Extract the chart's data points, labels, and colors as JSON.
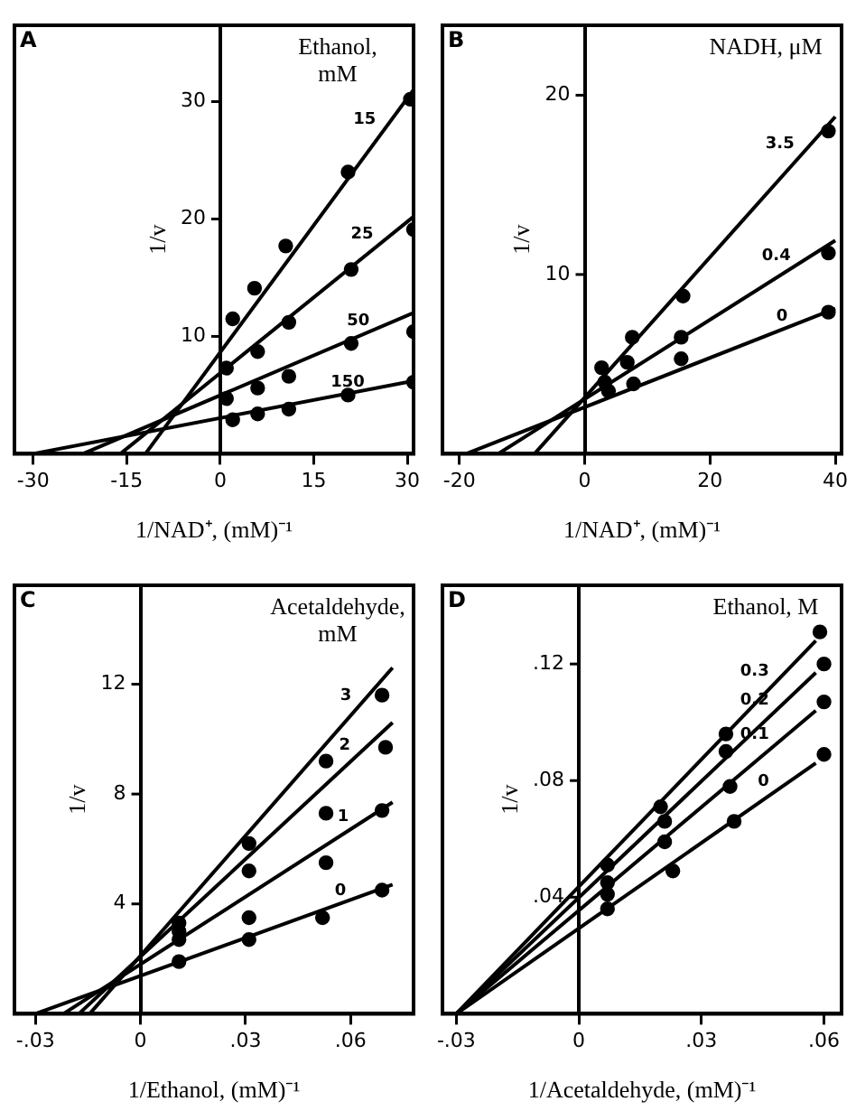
{
  "chart_data": [
    {
      "type": "scatter",
      "title": "A",
      "xlabel": "1/NAD⁺, (mM)⁻¹",
      "ylabel": "1/v",
      "legend_title": "Ethanol, mM",
      "marker": "circle",
      "xlim": [
        -33,
        31
      ],
      "ylim": [
        0,
        36.5
      ],
      "xticks": [
        -30,
        -15,
        0,
        15,
        30
      ],
      "yticks": [
        10,
        20,
        30
      ],
      "series": [
        {
          "type": "scatter",
          "color": "#000000",
          "x": [
            2,
            5.5,
            10.5,
            20.5,
            30.5
          ],
          "values": [
            11.5,
            14.1,
            17.7,
            24,
            30.2
          ]
        },
        {
          "type": "line",
          "name": "15",
          "marker": "none",
          "color": "#000000",
          "x": [
            -12,
            31
          ],
          "values": [
            0,
            31
          ]
        },
        {
          "type": "scatter",
          "color": "#000000",
          "x": [
            1,
            6,
            11,
            21,
            31
          ],
          "values": [
            7.3,
            8.7,
            11.2,
            15.7,
            19.1
          ]
        },
        {
          "type": "line",
          "name": "25",
          "marker": "none",
          "color": "#000000",
          "x": [
            -16,
            31
          ],
          "values": [
            0,
            20.2
          ]
        },
        {
          "type": "scatter",
          "color": "#000000",
          "x": [
            1,
            6,
            11,
            21,
            31
          ],
          "values": [
            4.7,
            5.6,
            6.6,
            9.4,
            10.4
          ]
        },
        {
          "type": "line",
          "name": "50",
          "marker": "none",
          "color": "#000000",
          "x": [
            -22,
            31
          ],
          "values": [
            0,
            12
          ]
        },
        {
          "type": "scatter",
          "color": "#000000",
          "x": [
            2,
            6,
            11,
            20.5,
            31
          ],
          "values": [
            2.9,
            3.4,
            3.8,
            5,
            6.1
          ]
        },
        {
          "type": "line",
          "name": "150",
          "marker": "none",
          "color": "#000000",
          "x": [
            -30,
            31
          ],
          "values": [
            0,
            6.2
          ]
        }
      ]
    },
    {
      "type": "scatter",
      "title": "B",
      "xlabel": "1/NAD⁺, (mM)⁻¹",
      "ylabel": "1/v",
      "legend_title": "NADH, μM",
      "marker": "circle",
      "xlim": [
        -22.7,
        41
      ],
      "ylim": [
        0,
        23.9
      ],
      "xticks": [
        -20,
        0,
        20,
        40
      ],
      "yticks": [
        10,
        20
      ],
      "series": [
        {
          "type": "scatter",
          "color": "#000000",
          "x": [
            2.7,
            7.6,
            15.7,
            38.9
          ],
          "values": [
            4.8,
            6.5,
            8.8,
            18
          ]
        },
        {
          "type": "line",
          "name": "3.5",
          "marker": "none",
          "color": "#000000",
          "x": [
            -8,
            40
          ],
          "values": [
            0,
            18.8
          ]
        },
        {
          "type": "scatter",
          "color": "#000000",
          "x": [
            3.2,
            6.8,
            15.4,
            38.9
          ],
          "values": [
            4,
            5.1,
            6.5,
            11.2
          ]
        },
        {
          "type": "line",
          "name": "0.4",
          "marker": "none",
          "color": "#000000",
          "x": [
            -13.8,
            40
          ],
          "values": [
            0,
            11.9
          ]
        },
        {
          "type": "scatter",
          "color": "#000000",
          "x": [
            3.8,
            7.8,
            15.4,
            38.9
          ],
          "values": [
            3.5,
            3.9,
            5.3,
            7.9
          ]
        },
        {
          "type": "line",
          "name": "0",
          "marker": "none",
          "color": "#000000",
          "x": [
            -18.9,
            40
          ],
          "values": [
            0,
            8.1
          ]
        }
      ]
    },
    {
      "type": "scatter",
      "title": "C",
      "xlabel": "1/Ethanol, (mM)⁻¹",
      "ylabel": "1/v",
      "legend_title": "Acetaldehyde, mM",
      "marker": "circle",
      "xlim": [
        -0.036,
        0.078
      ],
      "ylim": [
        0,
        15.6
      ],
      "xticks": [
        {
          "value": -0.03,
          "label": "-.03"
        },
        0,
        {
          "value": 0.03,
          "label": ".03"
        },
        {
          "value": 0.06,
          "label": ".06"
        }
      ],
      "yticks": [
        4,
        8,
        12
      ],
      "series": [
        {
          "type": "scatter",
          "color": "#000000",
          "x": [
            0.011,
            0.031,
            0.053,
            0.069
          ],
          "values": [
            3.3,
            6.2,
            9.2,
            11.6
          ]
        },
        {
          "type": "line",
          "name": "3",
          "marker": "none",
          "color": "#000000",
          "x": [
            -0.0145,
            0.072
          ],
          "values": [
            0,
            12.6
          ]
        },
        {
          "type": "scatter",
          "color": "#000000",
          "x": [
            0.011,
            0.031,
            0.053,
            0.07
          ],
          "values": [
            3,
            5.2,
            7.3,
            9.7
          ]
        },
        {
          "type": "line",
          "name": "2",
          "marker": "none",
          "color": "#000000",
          "x": [
            -0.0176,
            0.072
          ],
          "values": [
            0,
            10.6
          ]
        },
        {
          "type": "scatter",
          "color": "#000000",
          "x": [
            0.011,
            0.031,
            0.053,
            0.069
          ],
          "values": [
            2.7,
            3.5,
            5.5,
            7.4
          ]
        },
        {
          "type": "line",
          "name": "1",
          "marker": "none",
          "color": "#000000",
          "x": [
            -0.022,
            0.072
          ],
          "values": [
            0,
            7.7
          ]
        },
        {
          "type": "scatter",
          "color": "#000000",
          "x": [
            0.011,
            0.031,
            0.052,
            0.069
          ],
          "values": [
            1.9,
            2.7,
            3.5,
            4.5
          ]
        },
        {
          "type": "line",
          "name": "0",
          "marker": "none",
          "color": "#000000",
          "x": [
            -0.03,
            0.072
          ],
          "values": [
            0,
            4.7
          ]
        }
      ]
    },
    {
      "type": "scatter",
      "title": "D",
      "xlabel": "1/Acetaldehyde, (mM)⁻¹",
      "ylabel": "1/v",
      "legend_title": "Ethanol, M",
      "marker": "circle",
      "xlim": [
        -0.0334,
        0.0643
      ],
      "ylim": [
        0,
        0.147
      ],
      "xticks": [
        {
          "value": -0.03,
          "label": "-.03"
        },
        0,
        {
          "value": 0.03,
          "label": ".03"
        },
        {
          "value": 0.06,
          "label": ".06"
        }
      ],
      "yticks": [
        {
          "value": 0.04,
          "label": ".04"
        },
        {
          "value": 0.08,
          "label": ".08"
        },
        {
          "value": 0.12,
          "label": ".12"
        }
      ],
      "series": [
        {
          "type": "scatter",
          "color": "#000000",
          "x": [
            0.007,
            0.02,
            0.036,
            0.059
          ],
          "values": [
            0.051,
            0.071,
            0.096,
            0.131
          ]
        },
        {
          "type": "line",
          "name": "0.3",
          "marker": "none",
          "color": "#000000",
          "x": [
            -0.03,
            0.058
          ],
          "values": [
            0,
            0.128
          ]
        },
        {
          "type": "scatter",
          "color": "#000000",
          "x": [
            0.007,
            0.021,
            0.036,
            0.06
          ],
          "values": [
            0.045,
            0.066,
            0.09,
            0.12
          ]
        },
        {
          "type": "line",
          "name": "0.2",
          "marker": "none",
          "color": "#000000",
          "x": [
            -0.03,
            0.058
          ],
          "values": [
            0,
            0.117
          ]
        },
        {
          "type": "scatter",
          "color": "#000000",
          "x": [
            0.007,
            0.021,
            0.037,
            0.06
          ],
          "values": [
            0.041,
            0.059,
            0.078,
            0.107
          ]
        },
        {
          "type": "line",
          "name": "0.1",
          "marker": "none",
          "color": "#000000",
          "x": [
            -0.03,
            0.058
          ],
          "values": [
            0,
            0.104
          ]
        },
        {
          "type": "scatter",
          "color": "#000000",
          "x": [
            0.007,
            0.023,
            0.038,
            0.06
          ],
          "values": [
            0.036,
            0.049,
            0.066,
            0.089
          ]
        },
        {
          "type": "line",
          "name": "0",
          "marker": "none",
          "color": "#000000",
          "x": [
            -0.03,
            0.058
          ],
          "values": [
            0,
            0.086
          ]
        }
      ]
    }
  ]
}
